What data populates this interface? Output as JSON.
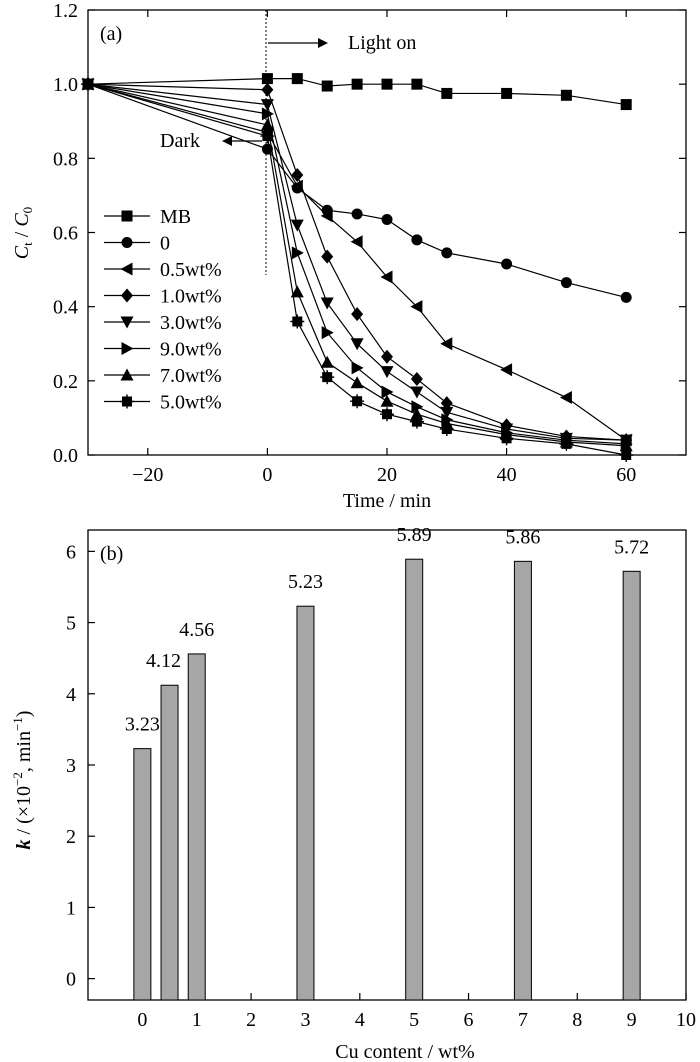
{
  "chart_data": [
    {
      "panel": "(a)",
      "type": "line",
      "xlabel": "Time / min",
      "ylabel": {
        "main": "C",
        "sub": "t",
        "sep": " / ",
        "main2": "C",
        "sub2": "0"
      },
      "xlim": [
        -30,
        70
      ],
      "ylim": [
        0.0,
        1.2
      ],
      "xticks": [
        -20,
        0,
        20,
        40,
        60
      ],
      "yticks": [
        "0.0",
        "0.2",
        "0.4",
        "0.6",
        "0.8",
        "1.0",
        "1.2"
      ],
      "annotations": {
        "light_on": "Light on",
        "dark": "Dark"
      },
      "legend_position": "left",
      "series": [
        {
          "name": "MB",
          "marker": "square",
          "points": [
            [
              -30,
              1.0
            ],
            [
              0,
              1.015
            ],
            [
              5,
              1.015
            ],
            [
              10,
              0.995
            ],
            [
              15,
              1.0
            ],
            [
              20,
              1.0
            ],
            [
              25,
              1.0
            ],
            [
              30,
              0.975
            ],
            [
              40,
              0.975
            ],
            [
              50,
              0.97
            ],
            [
              60,
              0.945
            ]
          ]
        },
        {
          "name": "0",
          "marker": "circle",
          "points": [
            [
              -30,
              1.0
            ],
            [
              0,
              0.825
            ],
            [
              5,
              0.72
            ],
            [
              10,
              0.66
            ],
            [
              15,
              0.65
            ],
            [
              20,
              0.635
            ],
            [
              25,
              0.58
            ],
            [
              30,
              0.545
            ],
            [
              40,
              0.515
            ],
            [
              50,
              0.465
            ],
            [
              60,
              0.425
            ]
          ]
        },
        {
          "name": "0.5wt%",
          "marker": "tri-left",
          "points": [
            [
              -30,
              1.0
            ],
            [
              0,
              0.87
            ],
            [
              5,
              0.725
            ],
            [
              10,
              0.645
            ],
            [
              15,
              0.575
            ],
            [
              20,
              0.48
            ],
            [
              25,
              0.4
            ],
            [
              30,
              0.3
            ],
            [
              40,
              0.23
            ],
            [
              50,
              0.155
            ],
            [
              60,
              0.04
            ]
          ]
        },
        {
          "name": "1.0wt%",
          "marker": "diamond",
          "points": [
            [
              -30,
              1.0
            ],
            [
              0,
              0.985
            ],
            [
              5,
              0.755
            ],
            [
              10,
              0.535
            ],
            [
              15,
              0.38
            ],
            [
              20,
              0.265
            ],
            [
              25,
              0.205
            ],
            [
              30,
              0.14
            ],
            [
              40,
              0.08
            ],
            [
              50,
              0.05
            ],
            [
              60,
              0.04
            ]
          ]
        },
        {
          "name": "3.0wt%",
          "marker": "tri-down",
          "points": [
            [
              -30,
              1.0
            ],
            [
              0,
              0.945
            ],
            [
              5,
              0.62
            ],
            [
              10,
              0.41
            ],
            [
              15,
              0.3
            ],
            [
              20,
              0.225
            ],
            [
              25,
              0.17
            ],
            [
              30,
              0.115
            ],
            [
              40,
              0.07
            ],
            [
              50,
              0.045
            ],
            [
              60,
              0.04
            ]
          ]
        },
        {
          "name": "9.0wt%",
          "marker": "tri-right",
          "points": [
            [
              -30,
              1.0
            ],
            [
              0,
              0.92
            ],
            [
              5,
              0.545
            ],
            [
              10,
              0.33
            ],
            [
              15,
              0.235
            ],
            [
              20,
              0.17
            ],
            [
              25,
              0.13
            ],
            [
              30,
              0.095
            ],
            [
              40,
              0.06
            ],
            [
              50,
              0.04
            ],
            [
              60,
              0.03
            ]
          ]
        },
        {
          "name": "7.0wt%",
          "marker": "tri-up",
          "points": [
            [
              -30,
              1.0
            ],
            [
              0,
              0.89
            ],
            [
              5,
              0.44
            ],
            [
              10,
              0.25
            ],
            [
              15,
              0.195
            ],
            [
              20,
              0.145
            ],
            [
              25,
              0.11
            ],
            [
              30,
              0.085
            ],
            [
              40,
              0.055
            ],
            [
              50,
              0.035
            ],
            [
              60,
              0.025
            ]
          ]
        },
        {
          "name": "5.0wt%",
          "marker": "star-square",
          "points": [
            [
              -30,
              1.0
            ],
            [
              0,
              0.86
            ],
            [
              5,
              0.36
            ],
            [
              10,
              0.21
            ],
            [
              15,
              0.145
            ],
            [
              20,
              0.11
            ],
            [
              25,
              0.09
            ],
            [
              30,
              0.07
            ],
            [
              40,
              0.045
            ],
            [
              50,
              0.03
            ],
            [
              60,
              0.0
            ]
          ]
        }
      ]
    },
    {
      "panel": "(b)",
      "type": "bar",
      "xlabel": "Cu content / wt%",
      "ylabel": {
        "main": "k",
        "rest": " / (×10",
        "exp1": "−2",
        "mid": ", min",
        "exp2": "−1",
        "end": ")"
      },
      "xlim": [
        -1,
        10
      ],
      "ylim": [
        -0.3,
        6.3
      ],
      "xticks": [
        "0",
        "1",
        "2",
        "3",
        "4",
        "5",
        "6",
        "7",
        "8",
        "9",
        "10"
      ],
      "yticks": [
        "0",
        "1",
        "2",
        "3",
        "4",
        "5",
        "6"
      ],
      "categories": [
        0,
        0.5,
        1,
        3,
        5,
        7,
        9
      ],
      "values": [
        3.23,
        4.12,
        4.56,
        5.23,
        5.89,
        5.86,
        5.72
      ],
      "data_labels": [
        "3.23",
        "4.12",
        "4.56",
        "5.23",
        "5.89",
        "5.86",
        "5.72"
      ],
      "bar_color": "#a6a6a6"
    }
  ]
}
